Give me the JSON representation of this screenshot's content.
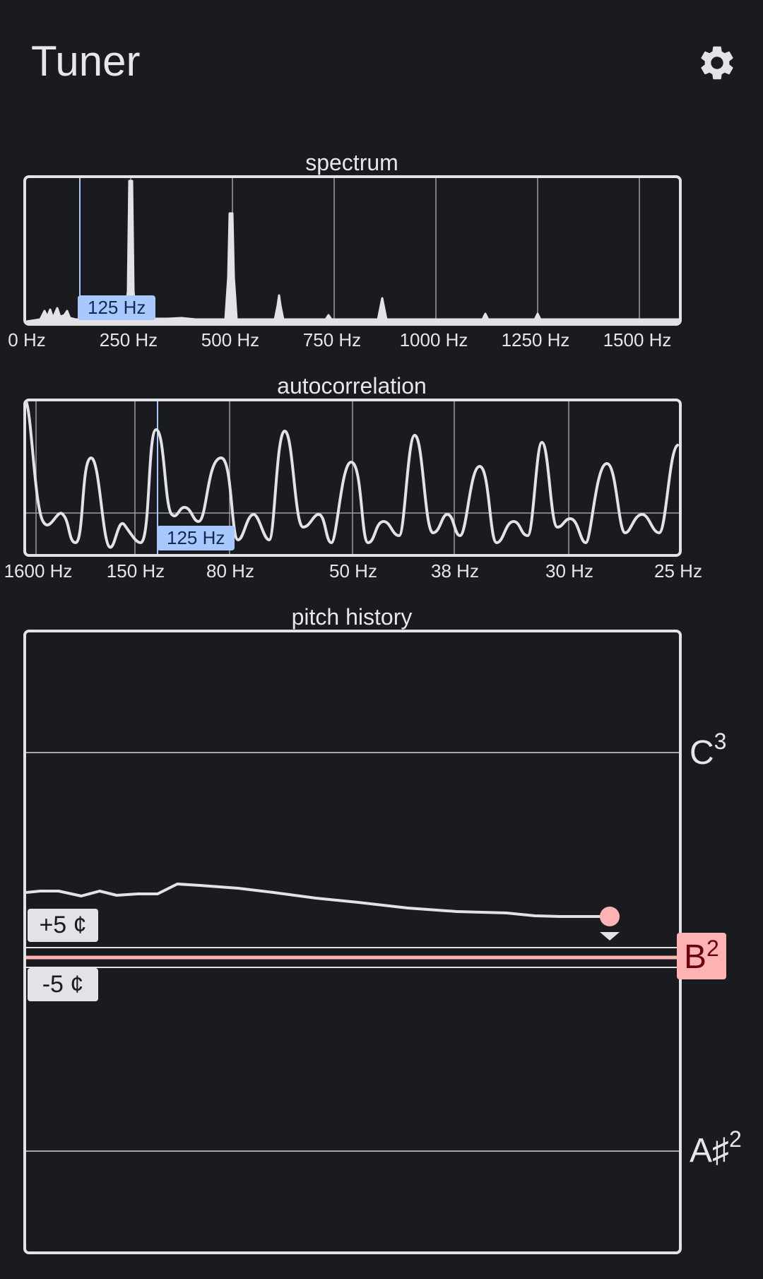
{
  "app": {
    "title": "Tuner"
  },
  "icons": {
    "settings": "gear-icon"
  },
  "colors": {
    "background": "#1a1b1f",
    "accent_blue": "#a8c8ff",
    "target_red": "#ffb3b3"
  },
  "spectrum": {
    "title": "spectrum",
    "ticks": [
      "0 Hz",
      "250 Hz",
      "500 Hz",
      "750 Hz",
      "1000 Hz",
      "1250 Hz",
      "1500 Hz"
    ],
    "marker_label": "125 Hz"
  },
  "autocorrelation": {
    "title": "autocorrelation",
    "ticks": [
      "1600 Hz",
      "150 Hz",
      "80 Hz",
      "50 Hz",
      "38 Hz",
      "30 Hz",
      "25 Hz"
    ],
    "marker_label": "125 Hz"
  },
  "pitch_history": {
    "title": "pitch history",
    "upper_note": {
      "name": "C",
      "octave": "3"
    },
    "target_note": {
      "name": "B",
      "octave": "2"
    },
    "lower_note": {
      "name": "A♯",
      "octave": "2"
    },
    "plus_cents": "+5 ¢",
    "minus_cents": "-5 ¢"
  }
}
